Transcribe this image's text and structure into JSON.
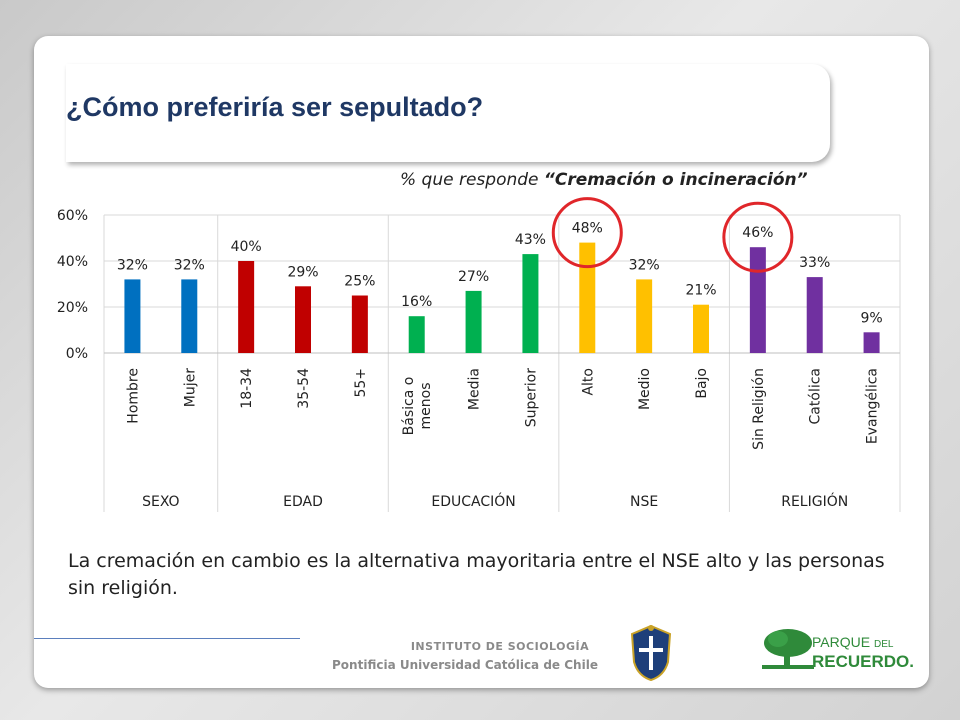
{
  "slide": {
    "title": "¿Cómo preferiría ser sepultado?",
    "subtitle_prefix": "% que responde",
    "subtitle_emphasis": "“Cremación o incineración”",
    "body_text": "La cremación en cambio es la alternativa mayoritaria entre el NSE alto y las personas sin religión."
  },
  "footer": {
    "institute": "INSTITUTO DE SOCIOLOGÍA",
    "university": "Pontificia Universidad Católica de Chile",
    "partner_logo_line1": "PARQUE",
    "partner_logo_del": "DEL",
    "partner_logo_line2": "RECUERDO."
  },
  "chart_data": {
    "type": "bar",
    "ylim": [
      0,
      60
    ],
    "yticks": [
      "0%",
      "20%",
      "40%",
      "60%"
    ],
    "categories": [
      "Hombre",
      "Mujer",
      "18-34",
      "35-54",
      "55+",
      "Básica o menos",
      "Media",
      "Superior",
      "Alto",
      "Medio",
      "Bajo",
      "Sin Religión",
      "Católica",
      "Evangélica"
    ],
    "category_lines": [
      [
        "Hombre"
      ],
      [
        "Mujer"
      ],
      [
        "18-34"
      ],
      [
        "35-54"
      ],
      [
        "55+"
      ],
      [
        "Básica o",
        "menos"
      ],
      [
        "Media"
      ],
      [
        "Superior"
      ],
      [
        "Alto"
      ],
      [
        "Medio"
      ],
      [
        "Bajo"
      ],
      [
        "Sin Religión"
      ],
      [
        "Católica"
      ],
      [
        "Evangélica"
      ]
    ],
    "values": [
      32,
      32,
      40,
      29,
      25,
      16,
      27,
      43,
      48,
      32,
      21,
      46,
      33,
      9
    ],
    "value_labels": [
      "32%",
      "32%",
      "40%",
      "29%",
      "25%",
      "16%",
      "27%",
      "43%",
      "48%",
      "32%",
      "21%",
      "46%",
      "33%",
      "9%"
    ],
    "bar_colors": [
      "#0070c0",
      "#0070c0",
      "#c00000",
      "#c00000",
      "#c00000",
      "#00b050",
      "#00b050",
      "#00b050",
      "#ffc000",
      "#ffc000",
      "#ffc000",
      "#7030a0",
      "#7030a0",
      "#7030a0"
    ],
    "groups": [
      {
        "name": "SEXO",
        "start": 0,
        "end": 1
      },
      {
        "name": "EDAD",
        "start": 2,
        "end": 4
      },
      {
        "name": "EDUCACIÓN",
        "start": 5,
        "end": 7
      },
      {
        "name": "NSE",
        "start": 8,
        "end": 10
      },
      {
        "name": "RELIGIÓN",
        "start": 11,
        "end": 13
      }
    ],
    "highlighted": [
      "Alto",
      "Sin Religión"
    ],
    "highlight_color": "#e0262a",
    "grid": true
  }
}
